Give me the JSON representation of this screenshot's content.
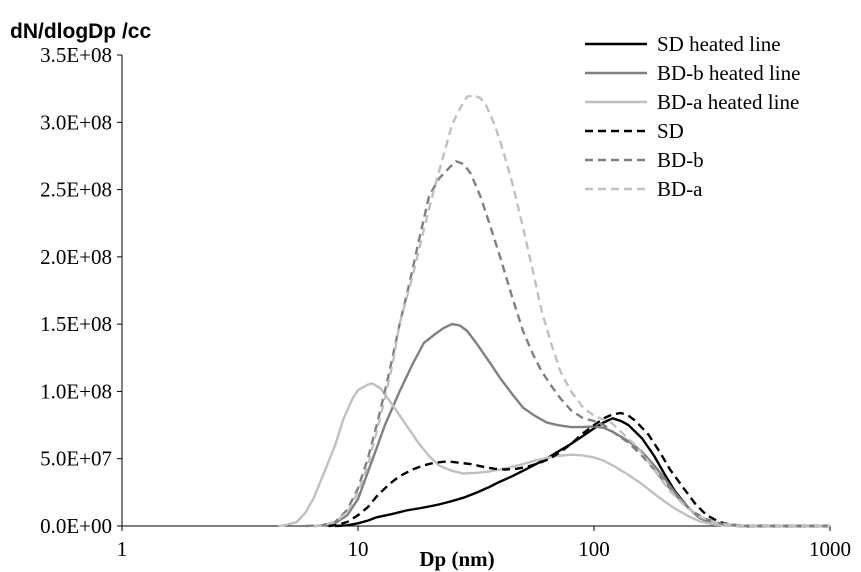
{
  "chart_data": {
    "type": "line",
    "title": "",
    "ylabel": "dN/dlogDp /cc",
    "xlabel": "Dp (nm)",
    "x_scale": "log",
    "xlim": [
      1,
      1000
    ],
    "ylim": [
      0,
      350000000
    ],
    "grid": false,
    "legend_position": "top-right",
    "x_tick_labels": [
      "1",
      "10",
      "100",
      "1000"
    ],
    "x_tick_values": [
      1,
      10,
      100,
      1000
    ],
    "y_tick_labels": [
      "0.0E+00",
      "5.0E+07",
      "1.0E+08",
      "1.5E+08",
      "2.0E+08",
      "2.5E+08",
      "3.0E+08",
      "3.5E+08"
    ],
    "y_tick_values": [
      0,
      50000000,
      100000000,
      150000000,
      200000000,
      250000000,
      300000000,
      350000000
    ],
    "series": [
      {
        "name": "SD heated line",
        "color": "#000000",
        "dash": "solid",
        "points": [
          [
            8,
            0
          ],
          [
            9,
            500000
          ],
          [
            10,
            2000000
          ],
          [
            11,
            4000000
          ],
          [
            12,
            6500000
          ],
          [
            14,
            9000000
          ],
          [
            16,
            11500000
          ],
          [
            18,
            13000000
          ],
          [
            20,
            14500000
          ],
          [
            22,
            16000000
          ],
          [
            25,
            18500000
          ],
          [
            28,
            21000000
          ],
          [
            32,
            25000000
          ],
          [
            36,
            29000000
          ],
          [
            40,
            33000000
          ],
          [
            45,
            37000000
          ],
          [
            50,
            41000000
          ],
          [
            56,
            45500000
          ],
          [
            63,
            50000000
          ],
          [
            70,
            55000000
          ],
          [
            80,
            61000000
          ],
          [
            90,
            67000000
          ],
          [
            100,
            72500000
          ],
          [
            110,
            77000000
          ],
          [
            120,
            80000000
          ],
          [
            130,
            78000000
          ],
          [
            140,
            75000000
          ],
          [
            160,
            65000000
          ],
          [
            180,
            52000000
          ],
          [
            200,
            38000000
          ],
          [
            220,
            26000000
          ],
          [
            250,
            14000000
          ],
          [
            280,
            6000000
          ],
          [
            320,
            2000000
          ],
          [
            360,
            500000
          ],
          [
            420,
            0
          ],
          [
            1000,
            0
          ]
        ]
      },
      {
        "name": "BD-b heated line",
        "color": "#808080",
        "dash": "solid",
        "points": [
          [
            6.5,
            0
          ],
          [
            7,
            200000
          ],
          [
            8,
            2000000
          ],
          [
            9,
            8000000
          ],
          [
            10,
            20000000
          ],
          [
            11,
            40000000
          ],
          [
            12,
            58000000
          ],
          [
            13,
            75000000
          ],
          [
            15,
            100000000
          ],
          [
            17,
            120000000
          ],
          [
            19,
            136000000
          ],
          [
            21,
            142000000
          ],
          [
            23,
            147000000
          ],
          [
            25,
            150000000
          ],
          [
            27,
            149000000
          ],
          [
            29,
            145000000
          ],
          [
            32,
            135000000
          ],
          [
            36,
            122000000
          ],
          [
            40,
            110000000
          ],
          [
            45,
            98000000
          ],
          [
            50,
            88000000
          ],
          [
            56,
            82000000
          ],
          [
            63,
            77000000
          ],
          [
            70,
            75000000
          ],
          [
            80,
            73500000
          ],
          [
            90,
            73500000
          ],
          [
            100,
            74000000
          ],
          [
            110,
            73000000
          ],
          [
            120,
            70000000
          ],
          [
            140,
            63000000
          ],
          [
            160,
            55000000
          ],
          [
            180,
            45000000
          ],
          [
            200,
            35000000
          ],
          [
            220,
            25000000
          ],
          [
            250,
            14000000
          ],
          [
            280,
            6000000
          ],
          [
            320,
            2000000
          ],
          [
            360,
            500000
          ],
          [
            420,
            0
          ],
          [
            1000,
            0
          ]
        ]
      },
      {
        "name": "BD-a heated line",
        "color": "#c0c0c0",
        "dash": "solid",
        "points": [
          [
            4.6,
            0
          ],
          [
            5,
            1000000
          ],
          [
            5.5,
            3000000
          ],
          [
            6,
            10000000
          ],
          [
            6.5,
            21000000
          ],
          [
            7.2,
            40000000
          ],
          [
            8,
            60000000
          ],
          [
            8.7,
            80000000
          ],
          [
            9.5,
            95000000
          ],
          [
            10,
            101000000
          ],
          [
            11,
            105000000
          ],
          [
            11.5,
            106000000
          ],
          [
            12.5,
            102000000
          ],
          [
            14,
            90000000
          ],
          [
            16,
            75000000
          ],
          [
            18,
            62000000
          ],
          [
            20,
            52000000
          ],
          [
            22,
            45000000
          ],
          [
            25,
            41000000
          ],
          [
            28,
            39000000
          ],
          [
            32,
            39500000
          ],
          [
            36,
            40500000
          ],
          [
            40,
            42000000
          ],
          [
            45,
            44000000
          ],
          [
            50,
            46000000
          ],
          [
            56,
            48500000
          ],
          [
            63,
            50500000
          ],
          [
            70,
            52000000
          ],
          [
            80,
            53000000
          ],
          [
            90,
            52500000
          ],
          [
            100,
            51000000
          ],
          [
            110,
            48500000
          ],
          [
            120,
            45000000
          ],
          [
            140,
            38000000
          ],
          [
            160,
            31000000
          ],
          [
            180,
            24000000
          ],
          [
            200,
            18000000
          ],
          [
            220,
            13000000
          ],
          [
            250,
            7500000
          ],
          [
            280,
            3500000
          ],
          [
            320,
            1200000
          ],
          [
            360,
            300000
          ],
          [
            420,
            0
          ],
          [
            1000,
            0
          ]
        ]
      },
      {
        "name": "SD",
        "color": "#000000",
        "dash": "dashed",
        "points": [
          [
            7.5,
            0
          ],
          [
            8,
            500000
          ],
          [
            9,
            3000000
          ],
          [
            10,
            8000000
          ],
          [
            11,
            14000000
          ],
          [
            12,
            22000000
          ],
          [
            13,
            28000000
          ],
          [
            14,
            33000000
          ],
          [
            15,
            37000000
          ],
          [
            17,
            42000000
          ],
          [
            19,
            45000000
          ],
          [
            21,
            47000000
          ],
          [
            24,
            48000000
          ],
          [
            27,
            47000000
          ],
          [
            30,
            46000000
          ],
          [
            34,
            44000000
          ],
          [
            38,
            42500000
          ],
          [
            42,
            42000000
          ],
          [
            47,
            42500000
          ],
          [
            52,
            44000000
          ],
          [
            58,
            46500000
          ],
          [
            65,
            50000000
          ],
          [
            72,
            55000000
          ],
          [
            80,
            61000000
          ],
          [
            90,
            69000000
          ],
          [
            100,
            75000000
          ],
          [
            110,
            80000000
          ],
          [
            120,
            83000000
          ],
          [
            130,
            84000000
          ],
          [
            140,
            82000000
          ],
          [
            150,
            78000000
          ],
          [
            170,
            68000000
          ],
          [
            190,
            55000000
          ],
          [
            210,
            42000000
          ],
          [
            240,
            28000000
          ],
          [
            270,
            16000000
          ],
          [
            300,
            8000000
          ],
          [
            340,
            3000000
          ],
          [
            380,
            1000000
          ],
          [
            450,
            0
          ],
          [
            1000,
            0
          ]
        ]
      },
      {
        "name": "BD-b",
        "color": "#808080",
        "dash": "dashed",
        "points": [
          [
            6,
            0
          ],
          [
            7,
            500000
          ],
          [
            8,
            3000000
          ],
          [
            9,
            12000000
          ],
          [
            10,
            28000000
          ],
          [
            11,
            50000000
          ],
          [
            12,
            75000000
          ],
          [
            13,
            100000000
          ],
          [
            14,
            125000000
          ],
          [
            15,
            150000000
          ],
          [
            16,
            170000000
          ],
          [
            17,
            190000000
          ],
          [
            18,
            210000000
          ],
          [
            19,
            228000000
          ],
          [
            20,
            245000000
          ],
          [
            22,
            258000000
          ],
          [
            24,
            265000000
          ],
          [
            26,
            271000000
          ],
          [
            28,
            269000000
          ],
          [
            30,
            262000000
          ],
          [
            33,
            245000000
          ],
          [
            36,
            225000000
          ],
          [
            40,
            200000000
          ],
          [
            45,
            170000000
          ],
          [
            50,
            145000000
          ],
          [
            55,
            128000000
          ],
          [
            60,
            115000000
          ],
          [
            66,
            104000000
          ],
          [
            72,
            95000000
          ],
          [
            80,
            86000000
          ],
          [
            90,
            80000000
          ],
          [
            100,
            78000000
          ],
          [
            110,
            75000000
          ],
          [
            120,
            70000000
          ],
          [
            140,
            62000000
          ],
          [
            160,
            52000000
          ],
          [
            180,
            42000000
          ],
          [
            200,
            32000000
          ],
          [
            230,
            20000000
          ],
          [
            260,
            11000000
          ],
          [
            300,
            5000000
          ],
          [
            350,
            1500000
          ],
          [
            420,
            300000
          ],
          [
            500,
            0
          ],
          [
            1000,
            0
          ]
        ]
      },
      {
        "name": "BD-a",
        "color": "#c0c0c0",
        "dash": "dashed",
        "points": [
          [
            6.5,
            0
          ],
          [
            7,
            500000
          ],
          [
            8,
            3000000
          ],
          [
            9,
            10000000
          ],
          [
            10,
            25000000
          ],
          [
            11,
            45000000
          ],
          [
            12,
            70000000
          ],
          [
            13,
            95000000
          ],
          [
            14,
            120000000
          ],
          [
            15,
            150000000
          ],
          [
            17,
            185000000
          ],
          [
            19,
            220000000
          ],
          [
            21,
            250000000
          ],
          [
            23,
            275000000
          ],
          [
            25,
            298000000
          ],
          [
            27,
            310000000
          ],
          [
            29,
            319000000
          ],
          [
            31,
            320000000
          ],
          [
            33,
            318000000
          ],
          [
            35,
            312000000
          ],
          [
            38,
            298000000
          ],
          [
            41,
            280000000
          ],
          [
            45,
            255000000
          ],
          [
            50,
            222000000
          ],
          [
            55,
            190000000
          ],
          [
            60,
            160000000
          ],
          [
            66,
            135000000
          ],
          [
            72,
            115000000
          ],
          [
            80,
            100000000
          ],
          [
            90,
            88000000
          ],
          [
            100,
            82000000
          ],
          [
            110,
            79000000
          ],
          [
            120,
            76000000
          ],
          [
            130,
            70000000
          ],
          [
            150,
            60000000
          ],
          [
            170,
            48000000
          ],
          [
            190,
            36000000
          ],
          [
            210,
            26000000
          ],
          [
            240,
            16000000
          ],
          [
            280,
            7000000
          ],
          [
            320,
            3000000
          ],
          [
            380,
            800000
          ],
          [
            450,
            0
          ],
          [
            1000,
            0
          ]
        ]
      }
    ]
  }
}
